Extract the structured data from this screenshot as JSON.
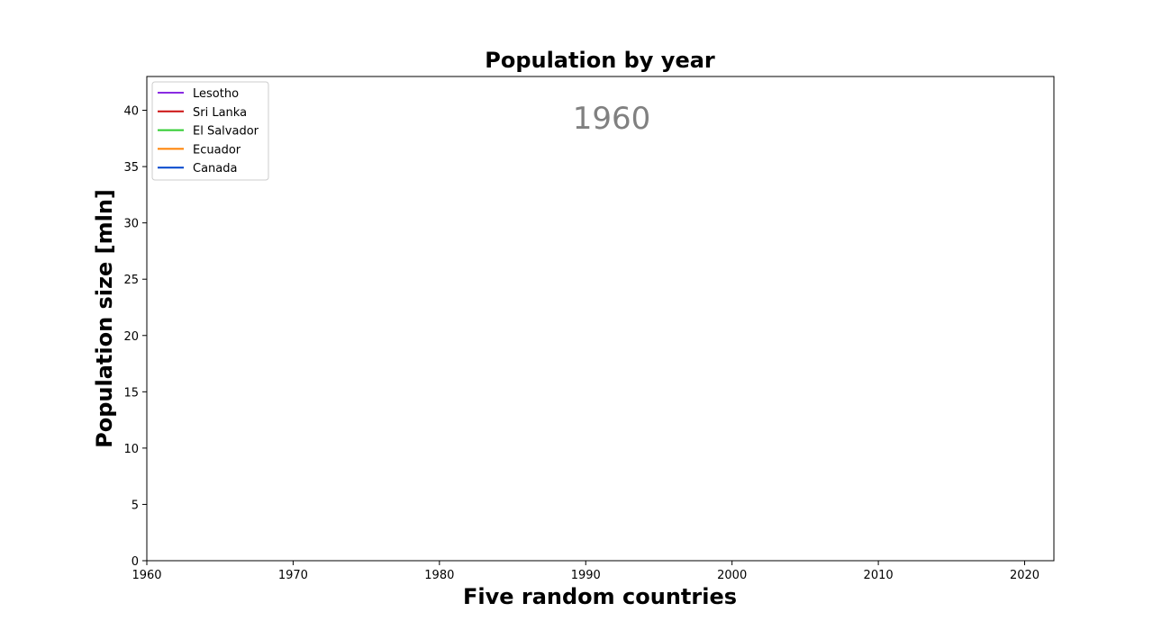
{
  "chart_data": {
    "type": "line",
    "title": "Population by year",
    "xlabel": "Five random countries",
    "ylabel": "Population size [mln]",
    "xlim": [
      1960,
      2022
    ],
    "ylim": [
      0,
      43
    ],
    "xticks": [
      1960,
      1970,
      1980,
      1990,
      2000,
      2010,
      2020
    ],
    "yticks": [
      0,
      5,
      10,
      15,
      20,
      25,
      30,
      35,
      40
    ],
    "annotation": "1960",
    "legend_placement": "upper-left",
    "grid": false,
    "series": [
      {
        "name": "Lesotho",
        "color": "#8a2be2",
        "x": [],
        "y": []
      },
      {
        "name": "Sri Lanka",
        "color": "#cc1111",
        "x": [],
        "y": []
      },
      {
        "name": "El Salvador",
        "color": "#2ecc2e",
        "x": [],
        "y": []
      },
      {
        "name": "Ecuador",
        "color": "#ff8000",
        "x": [],
        "y": []
      },
      {
        "name": "Canada",
        "color": "#0044cc",
        "x": [],
        "y": []
      }
    ]
  }
}
